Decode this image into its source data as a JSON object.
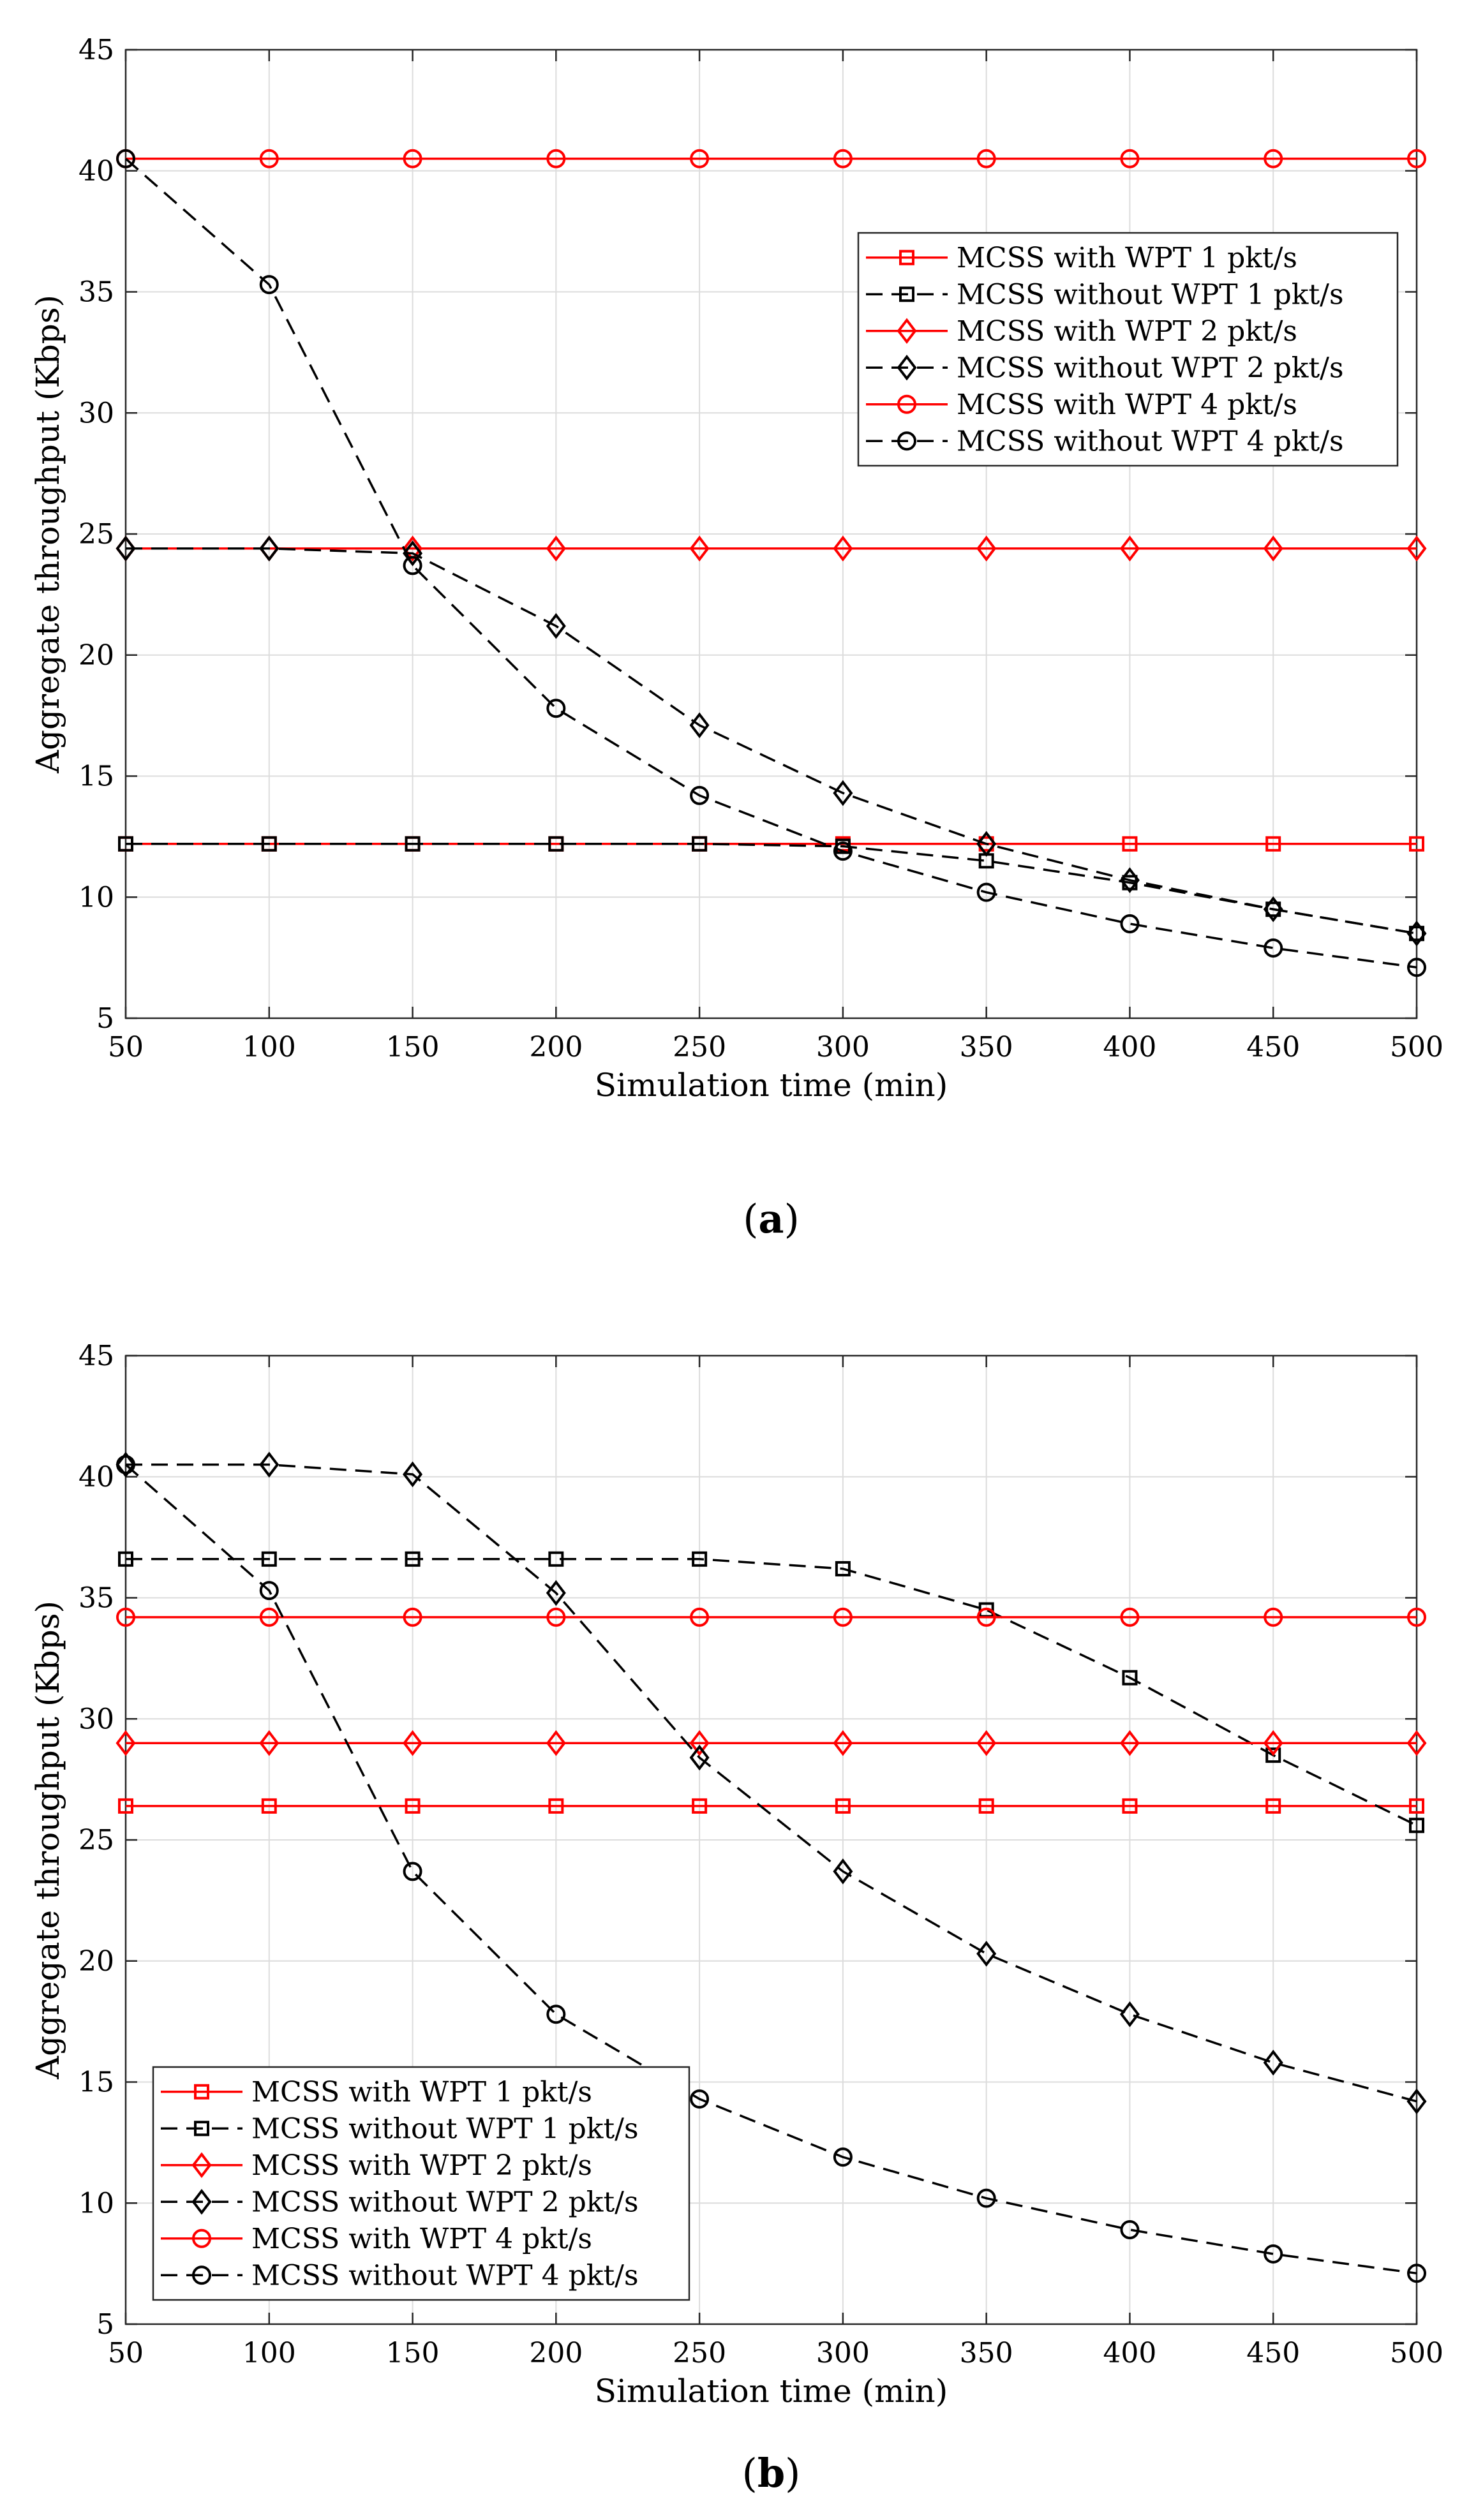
{
  "chart_data": [
    {
      "type": "line",
      "panel_label": "a",
      "caption_open": "(",
      "caption_close": ")",
      "xlabel": "Simulation time (min)",
      "ylabel": "Aggregate throughput (Kbps)",
      "xlim": [
        50,
        500
      ],
      "ylim": [
        5,
        45
      ],
      "xticks": [
        50,
        100,
        150,
        200,
        250,
        300,
        350,
        400,
        450,
        500
      ],
      "yticks": [
        5,
        10,
        15,
        20,
        25,
        30,
        35,
        40,
        45
      ],
      "grid": true,
      "legend_position": "top-right",
      "x": [
        50,
        100,
        150,
        200,
        250,
        300,
        350,
        400,
        450,
        500
      ],
      "series": [
        {
          "name": "MCSS with WPT 1 pkt/s",
          "color": "#ff0000",
          "dash": "solid",
          "marker": "square",
          "values": [
            12.2,
            12.2,
            12.2,
            12.2,
            12.2,
            12.2,
            12.2,
            12.2,
            12.2,
            12.2
          ]
        },
        {
          "name": "MCSS without WPT 1 pkt/s",
          "color": "#000000",
          "dash": "dashed",
          "marker": "square",
          "values": [
            12.2,
            12.2,
            12.2,
            12.2,
            12.2,
            12.1,
            11.5,
            10.6,
            9.5,
            8.5
          ]
        },
        {
          "name": "MCSS with WPT 2 pkt/s",
          "color": "#ff0000",
          "dash": "solid",
          "marker": "diamond",
          "values": [
            24.4,
            24.4,
            24.4,
            24.4,
            24.4,
            24.4,
            24.4,
            24.4,
            24.4,
            24.4
          ]
        },
        {
          "name": "MCSS without WPT 2 pkt/s",
          "color": "#000000",
          "dash": "dashed",
          "marker": "diamond",
          "values": [
            24.4,
            24.4,
            24.2,
            21.2,
            17.1,
            14.3,
            12.2,
            10.7,
            9.5,
            8.5
          ]
        },
        {
          "name": "MCSS with WPT 4 pkt/s",
          "color": "#ff0000",
          "dash": "solid",
          "marker": "circle",
          "values": [
            40.5,
            40.5,
            40.5,
            40.5,
            40.5,
            40.5,
            40.5,
            40.5,
            40.5,
            40.5
          ]
        },
        {
          "name": "MCSS without WPT 4 pkt/s",
          "color": "#000000",
          "dash": "dashed",
          "marker": "circle",
          "values": [
            40.5,
            35.3,
            23.7,
            17.8,
            14.2,
            11.9,
            10.2,
            8.9,
            7.9,
            7.1
          ]
        }
      ]
    },
    {
      "type": "line",
      "panel_label": "b",
      "caption_open": "(",
      "caption_close": ")",
      "xlabel": "Simulation time (min)",
      "ylabel": "Aggregate throughput (Kbps)",
      "xlim": [
        50,
        500
      ],
      "ylim": [
        5,
        45
      ],
      "xticks": [
        50,
        100,
        150,
        200,
        250,
        300,
        350,
        400,
        450,
        500
      ],
      "yticks": [
        5,
        10,
        15,
        20,
        25,
        30,
        35,
        40,
        45
      ],
      "grid": true,
      "legend_position": "bottom-left",
      "x": [
        50,
        100,
        150,
        200,
        250,
        300,
        350,
        400,
        450,
        500
      ],
      "series": [
        {
          "name": "MCSS with WPT 1 pkt/s",
          "color": "#ff0000",
          "dash": "solid",
          "marker": "square",
          "values": [
            26.4,
            26.4,
            26.4,
            26.4,
            26.4,
            26.4,
            26.4,
            26.4,
            26.4,
            26.4
          ]
        },
        {
          "name": "MCSS without WPT 1 pkt/s",
          "color": "#000000",
          "dash": "dashed",
          "marker": "square",
          "values": [
            36.6,
            36.6,
            36.6,
            36.6,
            36.6,
            36.2,
            34.5,
            31.7,
            28.5,
            25.6
          ]
        },
        {
          "name": "MCSS with WPT 2 pkt/s",
          "color": "#ff0000",
          "dash": "solid",
          "marker": "diamond",
          "values": [
            29.0,
            29.0,
            29.0,
            29.0,
            29.0,
            29.0,
            29.0,
            29.0,
            29.0,
            29.0
          ]
        },
        {
          "name": "MCSS without WPT 2 pkt/s",
          "color": "#000000",
          "dash": "dashed",
          "marker": "diamond",
          "values": [
            40.5,
            40.5,
            40.1,
            35.2,
            28.4,
            23.7,
            20.3,
            17.8,
            15.8,
            14.2
          ]
        },
        {
          "name": "MCSS with WPT 4 pkt/s",
          "color": "#ff0000",
          "dash": "solid",
          "marker": "circle",
          "values": [
            34.2,
            34.2,
            34.2,
            34.2,
            34.2,
            34.2,
            34.2,
            34.2,
            34.2,
            34.2
          ]
        },
        {
          "name": "MCSS without WPT 4 pkt/s",
          "color": "#000000",
          "dash": "dashed",
          "marker": "circle",
          "values": [
            40.5,
            35.3,
            23.7,
            17.8,
            14.3,
            11.9,
            10.2,
            8.9,
            7.9,
            7.1
          ]
        }
      ]
    }
  ]
}
